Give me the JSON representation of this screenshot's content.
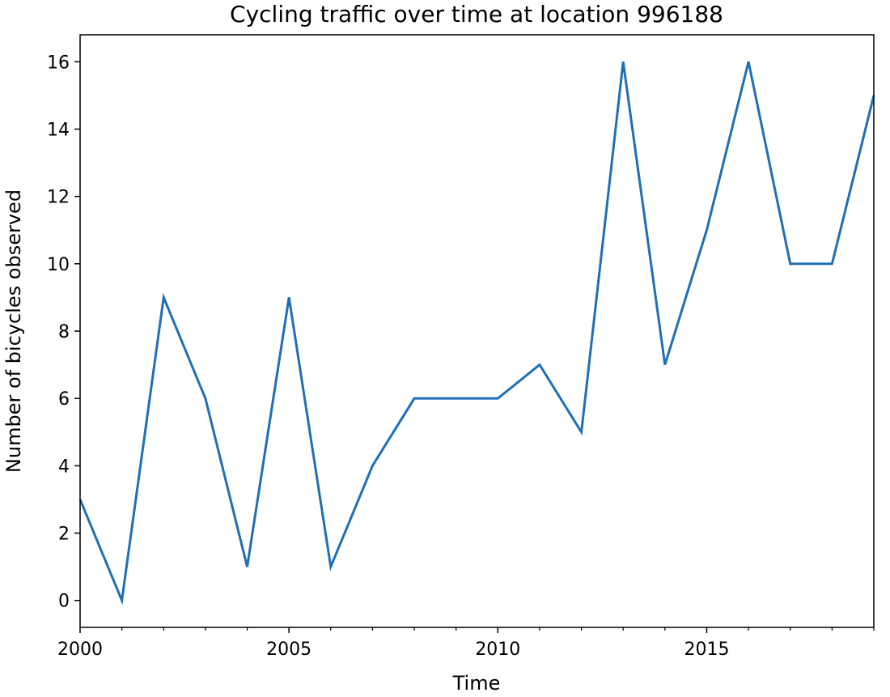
{
  "chart_data": {
    "type": "line",
    "title": "Cycling traffic over time at location 996188",
    "xlabel": "Time",
    "ylabel": "Number of bicycles observed",
    "xlim": [
      2000,
      2019
    ],
    "ylim": [
      -0.8,
      16.8
    ],
    "x_ticks": [
      2000,
      2005,
      2010,
      2015
    ],
    "x_tick_labels": [
      "2000",
      "2005",
      "2010",
      "2015"
    ],
    "y_ticks": [
      0,
      2,
      4,
      6,
      8,
      10,
      12,
      14,
      16
    ],
    "y_tick_labels": [
      "0",
      "2",
      "4",
      "6",
      "8",
      "10",
      "12",
      "14",
      "16"
    ],
    "minor_x_ticks_per_year": true,
    "grid": false,
    "legend": "none",
    "series": [
      {
        "color": "#1f6fb4",
        "x": [
          2000,
          2001,
          2002,
          2003,
          2004,
          2005,
          2006,
          2007,
          2008,
          2009,
          2010,
          2011,
          2012,
          2013,
          2014,
          2015,
          2016,
          2017,
          2018,
          2019
        ],
        "y": [
          3,
          0,
          9,
          6,
          1,
          9,
          1,
          4,
          6,
          6,
          6,
          7,
          5,
          16,
          7,
          11,
          16,
          10,
          10,
          15
        ]
      }
    ]
  }
}
